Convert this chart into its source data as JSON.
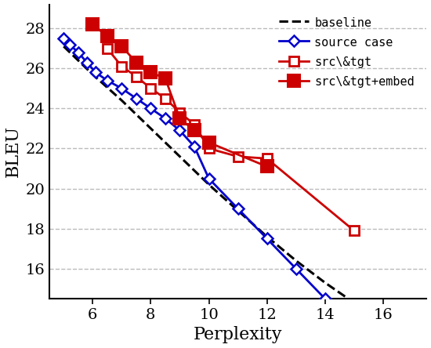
{
  "baseline": {
    "x": [
      5.0,
      6.0,
      7.0,
      8.0,
      9.0,
      10.0,
      11.0,
      12.0,
      13.0,
      14.0,
      15.0
    ],
    "y": [
      27.1,
      25.7,
      24.4,
      23.0,
      21.6,
      20.2,
      18.9,
      17.6,
      16.4,
      15.3,
      14.3
    ]
  },
  "source_case": {
    "x": [
      5.0,
      5.2,
      5.5,
      5.8,
      6.1,
      6.5,
      7.0,
      7.5,
      8.0,
      8.5,
      9.0,
      9.5,
      10.0,
      11.0,
      12.0,
      13.0,
      14.0
    ],
    "y": [
      27.5,
      27.2,
      26.8,
      26.3,
      25.8,
      25.4,
      25.0,
      24.5,
      24.0,
      23.5,
      22.9,
      22.1,
      20.5,
      19.0,
      17.5,
      16.0,
      14.5
    ]
  },
  "src_tgt": {
    "x": [
      6.5,
      7.0,
      7.5,
      8.0,
      8.5,
      9.0,
      9.5,
      10.0,
      11.0,
      12.0,
      15.0
    ],
    "y": [
      27.0,
      26.1,
      25.6,
      25.0,
      24.5,
      23.8,
      23.2,
      22.0,
      21.6,
      21.5,
      17.9
    ]
  },
  "src_tgt_embed": {
    "x": [
      6.0,
      6.5,
      7.0,
      7.5,
      8.0,
      8.5,
      9.0,
      9.5,
      10.0,
      12.0
    ],
    "y": [
      28.2,
      27.6,
      27.1,
      26.3,
      25.8,
      25.5,
      23.5,
      22.9,
      22.3,
      21.1
    ]
  },
  "xlabel": "Perplexity",
  "ylabel": "BLEU",
  "xlim": [
    4.5,
    17.5
  ],
  "ylim": [
    14.5,
    29.2
  ],
  "xticks": [
    6,
    8,
    10,
    12,
    14,
    16
  ],
  "yticks": [
    16,
    18,
    20,
    22,
    24,
    26,
    28
  ],
  "baseline_color": "#000000",
  "source_case_color": "#0000cc",
  "src_tgt_color": "#cc0000",
  "src_tgt_embed_color": "#cc0000",
  "grid_color": "#bbbbbb",
  "figsize": [
    5.5,
    4.44
  ],
  "dpi": 100
}
